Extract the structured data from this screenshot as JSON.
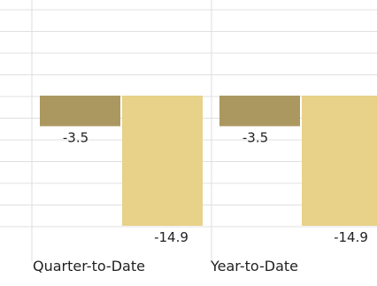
{
  "chart_data": {
    "type": "bar",
    "categories": [
      "Quarter-to-Date",
      "Year-to-Date"
    ],
    "series": [
      {
        "values": [
          -3.5,
          -3.5
        ],
        "color": "#ab9860"
      },
      {
        "values": [
          -14.9,
          -14.9
        ],
        "color": "#e8d189"
      }
    ],
    "data_labels": [
      [
        "-3.5",
        "-3.5"
      ],
      [
        "-14.9",
        "-14.9"
      ]
    ],
    "ylim": [
      -14.9,
      0
    ],
    "grid": true,
    "legend": "none"
  }
}
